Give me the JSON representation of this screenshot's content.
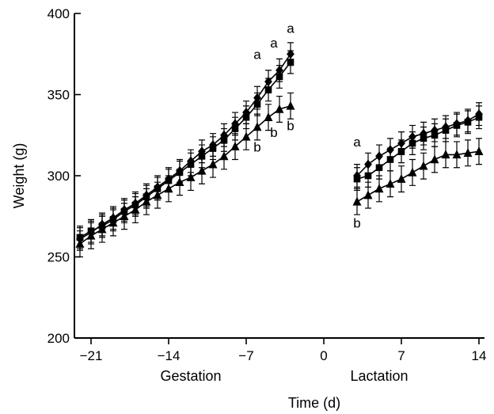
{
  "chart_data": {
    "type": "line",
    "xlabel": "Time (d)",
    "ylabel": "Weight (g)",
    "xlim": [
      -22.5,
      14.5
    ],
    "ylim": [
      200,
      400
    ],
    "x_ticks": [
      -21,
      -14,
      -7,
      0,
      7,
      14
    ],
    "x_tick_labels": [
      "−21",
      "−14",
      "−7",
      "0",
      "7",
      "14"
    ],
    "y_ticks": [
      200,
      250,
      300,
      350,
      400
    ],
    "y_tick_labels": [
      "200",
      "250",
      "300",
      "350",
      "400"
    ],
    "phase_labels": [
      {
        "text": "Gestation",
        "x": -12
      },
      {
        "text": "Lactation",
        "x": 5
      }
    ],
    "grid": false,
    "series": [
      {
        "marker": "diamond",
        "error": 7,
        "gestation": {
          "x": [
            -22,
            -21,
            -20,
            -19,
            -18,
            -17,
            -16,
            -15,
            -14,
            -13,
            -12,
            -11,
            -10,
            -9,
            -8,
            -7,
            -6,
            -5,
            -4,
            -3
          ],
          "y": [
            261,
            265,
            270,
            274,
            279,
            283,
            288,
            293,
            298,
            303,
            309,
            315,
            319,
            325,
            332,
            339,
            348,
            358,
            365,
            375
          ]
        },
        "lactation": {
          "x": [
            3,
            4,
            5,
            6,
            7,
            8,
            9,
            10,
            11,
            12,
            13,
            14
          ],
          "y": [
            300,
            307,
            312,
            316,
            320,
            324,
            326,
            328,
            330,
            332,
            334,
            338
          ]
        }
      },
      {
        "marker": "square",
        "error": 7,
        "gestation": {
          "x": [
            -22,
            -21,
            -20,
            -19,
            -18,
            -17,
            -16,
            -15,
            -14,
            -13,
            -12,
            -11,
            -10,
            -9,
            -8,
            -7,
            -6,
            -5,
            -4,
            -3
          ],
          "y": [
            262,
            266,
            269,
            273,
            278,
            282,
            287,
            292,
            297,
            302,
            307,
            312,
            317,
            322,
            329,
            336,
            344,
            353,
            361,
            370
          ]
        },
        "lactation": {
          "x": [
            3,
            4,
            5,
            6,
            7,
            8,
            9,
            10,
            11,
            12,
            13,
            14
          ],
          "y": [
            298,
            300,
            305,
            310,
            315,
            320,
            323,
            325,
            328,
            331,
            333,
            336
          ]
        }
      },
      {
        "marker": "triangle",
        "error": 8,
        "gestation": {
          "x": [
            -22,
            -21,
            -20,
            -19,
            -18,
            -17,
            -16,
            -15,
            -14,
            -13,
            -12,
            -11,
            -10,
            -9,
            -8,
            -7,
            -6,
            -5,
            -4,
            -3
          ],
          "y": [
            258,
            263,
            267,
            271,
            275,
            279,
            284,
            288,
            292,
            296,
            299,
            303,
            307,
            312,
            318,
            324,
            330,
            336,
            341,
            343
          ]
        },
        "lactation": {
          "x": [
            3,
            4,
            5,
            6,
            7,
            8,
            9,
            10,
            11,
            12,
            13,
            14
          ],
          "y": [
            284,
            288,
            292,
            295,
            298,
            302,
            306,
            310,
            313,
            313,
            314,
            315
          ]
        }
      }
    ],
    "annotations": [
      {
        "text": "a",
        "x": -3,
        "y": 388
      },
      {
        "text": "a",
        "x": -4.5,
        "y": 379
      },
      {
        "text": "a",
        "x": -6,
        "y": 372
      },
      {
        "text": "b",
        "x": -3,
        "y": 328
      },
      {
        "text": "b",
        "x": -4.5,
        "y": 324
      },
      {
        "text": "b",
        "x": -6,
        "y": 315
      },
      {
        "text": "a",
        "x": 3,
        "y": 318
      },
      {
        "text": "b",
        "x": 3,
        "y": 268
      }
    ]
  }
}
